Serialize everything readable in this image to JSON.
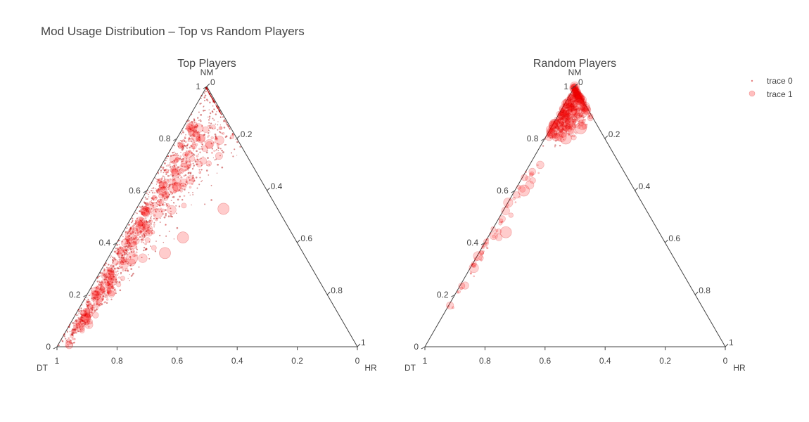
{
  "chart_data": {
    "type": "scatter",
    "subtype": "ternary",
    "title": "Mod Usage Distribution – Top vs Random Players",
    "axes": {
      "a": "NM",
      "b": "DT",
      "c": "HR"
    },
    "tick_values": [
      "0",
      "0.2",
      "0.4",
      "0.6",
      "0.8",
      "1"
    ],
    "point_color": "#cc0000",
    "legend": {
      "position": "top-right",
      "entries": [
        "trace 0",
        "trace 1"
      ]
    },
    "panels": [
      {
        "subtitle": "Top Players",
        "clusters": [
          {
            "trace": "trace 0",
            "a": [
              0.0,
              1.0
            ],
            "c": [
              0.0,
              0.45
            ],
            "density": "high",
            "marker": "small"
          },
          {
            "trace": "trace 1",
            "a": [
              0.0,
              0.85
            ],
            "c": [
              0.02,
              0.3
            ],
            "density": "high",
            "marker": "large",
            "opacity": 0.3
          }
        ],
        "highlights": [
          {
            "a": 0.36,
            "b": 0.46,
            "c": 0.18,
            "size": "large"
          },
          {
            "a": 0.42,
            "b": 0.37,
            "c": 0.21,
            "size": "large"
          },
          {
            "a": 0.34,
            "b": 0.58,
            "c": 0.08,
            "size": "large"
          },
          {
            "a": 0.53,
            "b": 0.18,
            "c": 0.29,
            "size": "large"
          }
        ]
      },
      {
        "subtitle": "Random Players",
        "clusters": [
          {
            "trace": "trace 0",
            "a": [
              0.75,
              1.0
            ],
            "c": [
              0.0,
              0.22
            ],
            "density": "low",
            "marker": "small"
          },
          {
            "trace": "trace 1",
            "a": [
              0.8,
              1.0
            ],
            "c": [
              0.0,
              0.2
            ],
            "density": "high",
            "marker": "large",
            "opacity": 0.3
          },
          {
            "trace": "trace 1",
            "a": [
              0.15,
              0.7
            ],
            "c": [
              0.0,
              0.1
            ],
            "density": "low",
            "marker": "large",
            "opacity": 0.3
          }
        ],
        "highlights": [
          {
            "a": 0.93,
            "b": 0.02,
            "c": 0.05,
            "size": "large"
          },
          {
            "a": 0.84,
            "b": 0.06,
            "c": 0.1,
            "size": "large"
          },
          {
            "a": 0.8,
            "b": 0.13,
            "c": 0.07,
            "size": "large"
          },
          {
            "a": 0.6,
            "b": 0.37,
            "c": 0.03,
            "size": "large"
          },
          {
            "a": 0.44,
            "b": 0.51,
            "c": 0.05,
            "size": "large"
          }
        ]
      }
    ]
  }
}
